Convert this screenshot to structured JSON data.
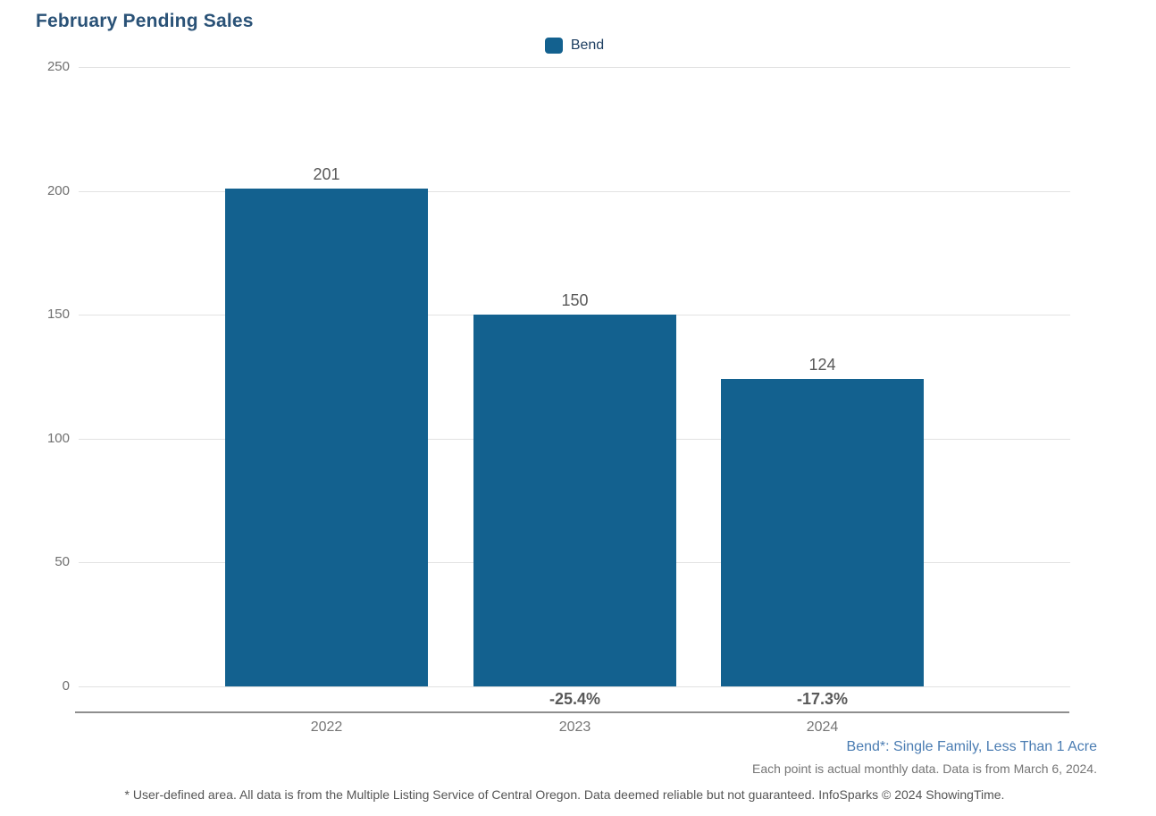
{
  "title": "February Pending Sales",
  "legend": {
    "items": [
      {
        "label": "Bend",
        "color": "#13618F"
      }
    ]
  },
  "chart_data": {
    "type": "bar",
    "title": "February Pending Sales",
    "categories": [
      "2022",
      "2023",
      "2024"
    ],
    "series": [
      {
        "name": "Bend",
        "values": [
          201,
          150,
          124
        ]
      }
    ],
    "value_labels": [
      "201",
      "150",
      "124"
    ],
    "pct_change_labels": [
      "",
      "-25.4%",
      "-17.3%"
    ],
    "ylim": [
      0,
      250
    ],
    "yticks": [
      0,
      50,
      100,
      150,
      200,
      250
    ],
    "grid": true,
    "legend_position": "top-center",
    "bar_color": "#13618F"
  },
  "footnotes": {
    "series_note": "Bend*: Single Family, Less Than 1 Acre",
    "data_note": "Each point is actual monthly data. Data is from March 6, 2024.",
    "disclaimer": "* User-defined area. All data is from the Multiple Listing Service of Central Oregon. Data deemed reliable but not guaranteed. InfoSparks © 2024 ShowingTime."
  },
  "colors": {
    "bar": "#13618F",
    "title_text": "#2A5277",
    "legend_text": "#1D3E61",
    "gridline": "#E2E2E2",
    "axis_line": "#8E8E8E",
    "tick_text": "#6F6F6F",
    "value_text": "#595959",
    "series_note_text": "#4A7CB2",
    "footnote_text": "#757575",
    "disclaimer_text": "#555555"
  }
}
